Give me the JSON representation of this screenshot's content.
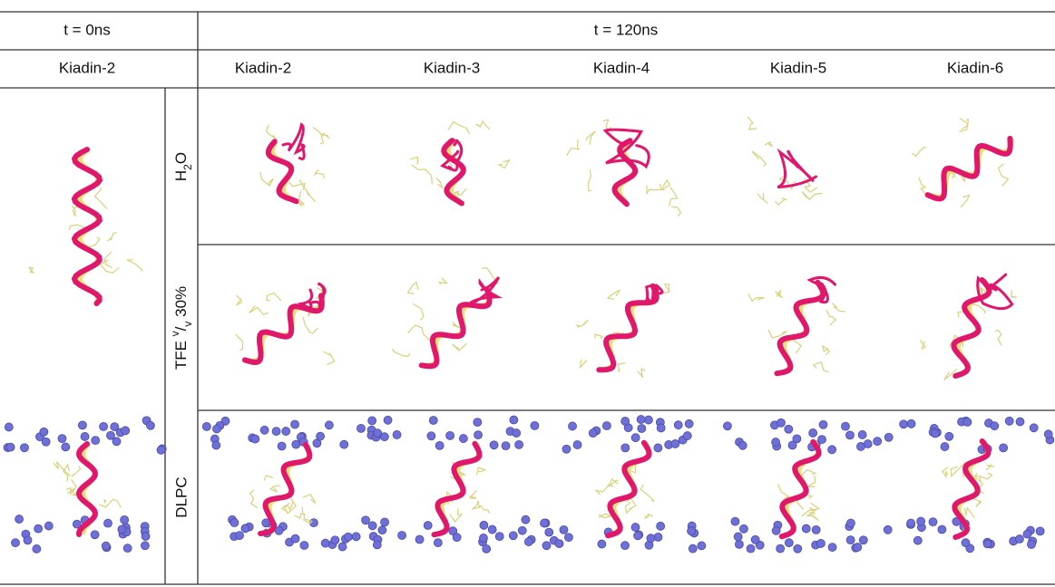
{
  "header": {
    "t0": "t = 0ns",
    "t120": "t = 120ns"
  },
  "columns": [
    "Kiadin-2",
    "Kiadin-2",
    "Kiadin-3",
    "Kiadin-4",
    "Kiadin-5",
    "Kiadin-6"
  ],
  "rows": [
    {
      "label_parts": [
        "H",
        "2",
        "O"
      ]
    },
    {
      "label_parts": [
        "TFE ",
        "v",
        "/",
        "v",
        " 30%"
      ]
    },
    {
      "label": "DLPC"
    }
  ]
}
